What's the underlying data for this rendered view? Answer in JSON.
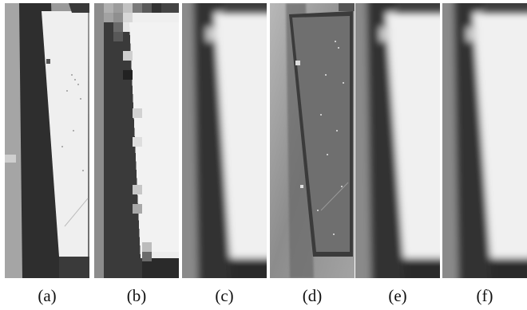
{
  "panels": [
    {
      "label": "(a)",
      "kind": "original"
    },
    {
      "label": "(b)",
      "kind": "pixelated"
    },
    {
      "label": "(c)",
      "kind": "blurred"
    },
    {
      "label": "(d)",
      "kind": "enhanced"
    },
    {
      "label": "(e)",
      "kind": "blurred"
    },
    {
      "label": "(f)",
      "kind": "blurred"
    }
  ],
  "colors": {
    "background": "#ffffff",
    "panel_bright": "#f2f2f2",
    "shadow_dark": "#2c2c2c",
    "ground_gray": "#8a8a8a",
    "enhanced_panel": "#6e6e6e"
  }
}
